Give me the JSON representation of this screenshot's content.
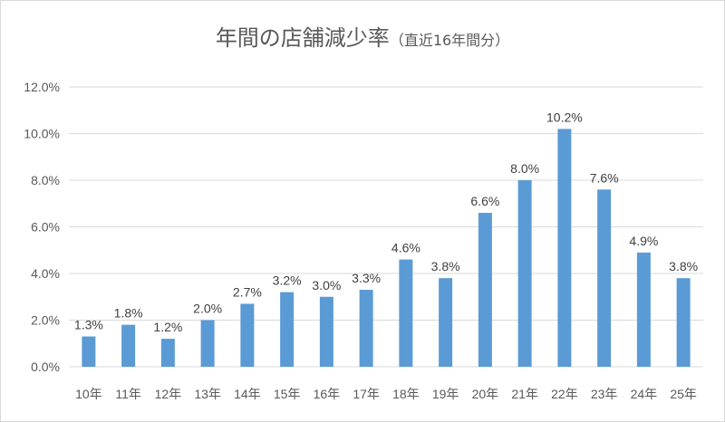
{
  "chart_data": {
    "type": "bar",
    "title": "年間の店舗減少率",
    "subtitle": "（直近16年間分）",
    "xlabel": "",
    "ylabel": "",
    "categories": [
      "10年",
      "11年",
      "12年",
      "13年",
      "14年",
      "15年",
      "16年",
      "17年",
      "18年",
      "19年",
      "20年",
      "21年",
      "22年",
      "23年",
      "24年",
      "25年"
    ],
    "values": [
      1.3,
      1.8,
      1.2,
      2.0,
      2.7,
      3.2,
      3.0,
      3.3,
      4.6,
      3.8,
      6.6,
      8.0,
      10.2,
      7.6,
      4.9,
      3.8
    ],
    "value_labels": [
      "1.3%",
      "1.8%",
      "1.2%",
      "2.0%",
      "2.7%",
      "3.2%",
      "3.0%",
      "3.3%",
      "4.6%",
      "3.8%",
      "6.6%",
      "8.0%",
      "10.2%",
      "7.6%",
      "4.9%",
      "3.8%"
    ],
    "ylim": [
      0,
      12
    ],
    "yticks": [
      0,
      2,
      4,
      6,
      8,
      10,
      12
    ],
    "ytick_labels": [
      "0.0%",
      "2.0%",
      "4.0%",
      "6.0%",
      "8.0%",
      "10.0%",
      "12.0%"
    ],
    "grid": true,
    "legend": "none",
    "colors": {
      "bar": "#5b9bd5",
      "grid": "#d9d9d9",
      "axis_text": "#595959",
      "label_text": "#404040"
    }
  }
}
